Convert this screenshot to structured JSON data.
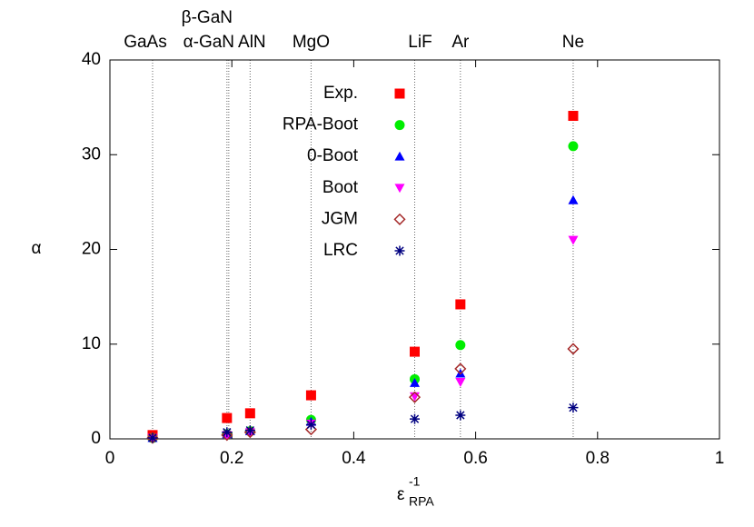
{
  "chart_data": {
    "type": "scatter",
    "y_label": "α",
    "x_label": {
      "base": "ε",
      "sup": "-1",
      "sub": "RPA"
    },
    "xlim": [
      0,
      1
    ],
    "xticks": [
      0,
      0.2,
      0.4,
      0.6,
      0.8,
      1
    ],
    "ylim": [
      0,
      40
    ],
    "yticks": [
      0,
      10,
      20,
      30,
      40
    ],
    "vlines": [
      0.07,
      0.192,
      0.195,
      0.23,
      0.33,
      0.5,
      0.575,
      0.76
    ],
    "top_labels": [
      "GaAs",
      "β-GaN",
      "α-GaN",
      "AlN",
      "MgO",
      "LiF",
      "Ar",
      "Ne"
    ],
    "x": [
      0.07,
      0.192,
      0.23,
      0.33,
      0.5,
      0.575,
      0.76
    ],
    "series": [
      {
        "name": "Exp.",
        "color": "#ff0000",
        "marker": "square",
        "values": [
          0.4,
          2.2,
          2.7,
          4.6,
          9.2,
          14.2,
          34.1
        ]
      },
      {
        "name": "RPA-Boot",
        "color": "#00ee00",
        "marker": "circle",
        "values": [
          0.1,
          0.5,
          0.8,
          2.0,
          6.3,
          9.9,
          30.9
        ]
      },
      {
        "name": "0-Boot",
        "color": "#0000ff",
        "marker": "triangle",
        "values": [
          0.1,
          0.5,
          0.8,
          1.8,
          5.9,
          6.9,
          25.2
        ]
      },
      {
        "name": "Boot",
        "color": "#ff00ff",
        "marker": "triangle-down",
        "values": [
          0.1,
          0.4,
          0.7,
          1.6,
          4.5,
          6.0,
          21.0
        ]
      },
      {
        "name": "JGM",
        "color": "#a52a2a",
        "marker": "diamond-open",
        "values": [
          0.1,
          0.4,
          0.7,
          1.0,
          4.4,
          7.4,
          9.5
        ]
      },
      {
        "name": "LRC",
        "color": "#000080",
        "marker": "asterisk",
        "values": [
          0.1,
          0.7,
          0.9,
          1.5,
          2.1,
          2.5,
          3.3
        ]
      }
    ]
  }
}
